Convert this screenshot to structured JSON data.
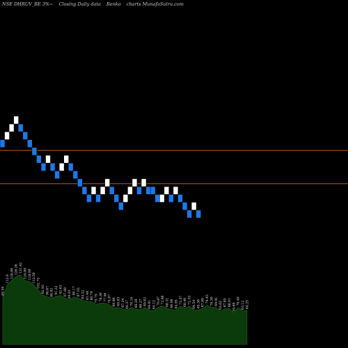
{
  "header": {
    "ticker": "NSE DHRUV_BE 3%~",
    "chart_kind": "Closing Daily data",
    "chart_style": "Renko",
    "site": "charts MunafaSutra.com"
  },
  "chart_data": {
    "type": "renko",
    "brick_size_pct": 3,
    "price_range": [
      84,
      148
    ],
    "up_color": "#ffffff",
    "down_color": "#1e78e6",
    "reference_line_color": "#b8651b",
    "reference_lines": [
      124.5,
      107.5
    ],
    "bricks": [
      {
        "dir": "down",
        "price": 128
      },
      {
        "dir": "up",
        "price": 132
      },
      {
        "dir": "up",
        "price": 136
      },
      {
        "dir": "up",
        "price": 140
      },
      {
        "dir": "down",
        "price": 136
      },
      {
        "dir": "down",
        "price": 132
      },
      {
        "dir": "down",
        "price": 128
      },
      {
        "dir": "down",
        "price": 124
      },
      {
        "dir": "down",
        "price": 120
      },
      {
        "dir": "down",
        "price": 116
      },
      {
        "dir": "up",
        "price": 120
      },
      {
        "dir": "down",
        "price": 116
      },
      {
        "dir": "down",
        "price": 112
      },
      {
        "dir": "up",
        "price": 116
      },
      {
        "dir": "up",
        "price": 120
      },
      {
        "dir": "down",
        "price": 116
      },
      {
        "dir": "down",
        "price": 112
      },
      {
        "dir": "down",
        "price": 108
      },
      {
        "dir": "down",
        "price": 104
      },
      {
        "dir": "down",
        "price": 100
      },
      {
        "dir": "up",
        "price": 104
      },
      {
        "dir": "down",
        "price": 100
      },
      {
        "dir": "up",
        "price": 104
      },
      {
        "dir": "up",
        "price": 108
      },
      {
        "dir": "down",
        "price": 104
      },
      {
        "dir": "down",
        "price": 100
      },
      {
        "dir": "down",
        "price": 96
      },
      {
        "dir": "up",
        "price": 100
      },
      {
        "dir": "up",
        "price": 104
      },
      {
        "dir": "up",
        "price": 108
      },
      {
        "dir": "down",
        "price": 104
      },
      {
        "dir": "up",
        "price": 108
      },
      {
        "dir": "down",
        "price": 104
      },
      {
        "dir": "down",
        "price": 104
      },
      {
        "dir": "down",
        "price": 100
      },
      {
        "dir": "up",
        "price": 100
      },
      {
        "dir": "up",
        "price": 104
      },
      {
        "dir": "down",
        "price": 100
      },
      {
        "dir": "up",
        "price": 104
      },
      {
        "dir": "down",
        "price": 100
      },
      {
        "dir": "down",
        "price": 96
      },
      {
        "dir": "down",
        "price": 92
      },
      {
        "dir": "up",
        "price": 96
      },
      {
        "dir": "down",
        "price": 92
      }
    ],
    "volume_labels": [
      "89.59",
      "112.6",
      "120.86",
      "128.26",
      "131.42",
      "120.89",
      "118.99",
      "112.56",
      "102.75",
      "92.95",
      "90.67",
      "86.92",
      "91.22",
      "92.63",
      "87.88",
      "84.01",
      "90.17",
      "87.55",
      "83.22",
      "81.48",
      "80.79",
      "75.79",
      "78.30",
      "77.90",
      "74.87",
      "68.86",
      "69.83",
      "67.34",
      "64.37",
      "70.10",
      "66.29",
      "66.27",
      "69.62",
      "64.61",
      "64.12",
      "70.87",
      "72.86",
      "68.31",
      "66.06",
      "64.95",
      "72.37",
      "68.40",
      "72.33",
      "64.54",
      "65.38",
      "67.98",
      "74.45",
      "70.30",
      "69.91",
      "63.02",
      "67.65",
      "68.01",
      "59.60",
      "70.40",
      "63.12",
      "64.25"
    ]
  }
}
